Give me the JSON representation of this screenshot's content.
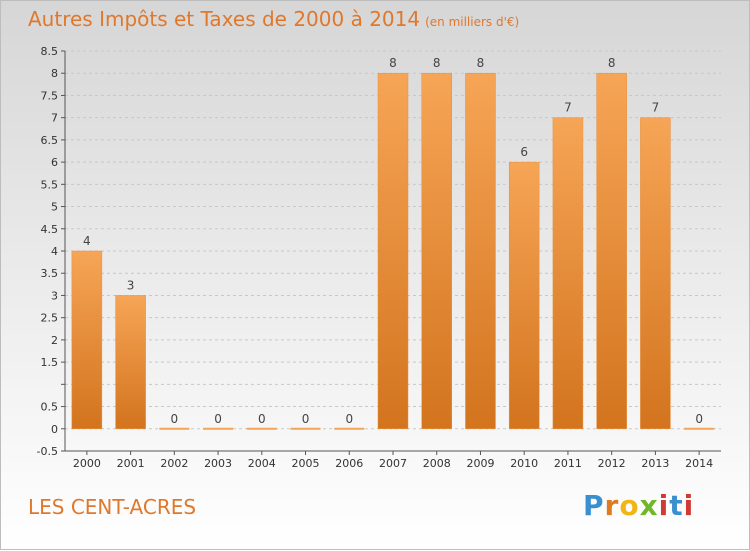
{
  "title": "Autres Impôts et Taxes de 2000 à 2014",
  "unit": "(en milliers d'€)",
  "commune": "LES CENT-ACRES",
  "logo": "Proxiti",
  "colors": {
    "bar_light": "#f6a556",
    "bar_dark": "#d3741e",
    "title": "#e0782c",
    "grid": "#c8c8c8"
  },
  "chart_data": {
    "type": "bar",
    "categories": [
      "2000",
      "2001",
      "2002",
      "2003",
      "2004",
      "2005",
      "2006",
      "2007",
      "2008",
      "2009",
      "2010",
      "2011",
      "2012",
      "2013",
      "2014"
    ],
    "values": [
      4,
      3,
      0,
      0,
      0,
      0,
      0,
      8,
      8,
      8,
      6,
      7,
      8,
      7,
      0
    ],
    "data_labels": [
      "4",
      "3",
      "0",
      "0",
      "0",
      "0",
      "0",
      "8",
      "8",
      "8",
      "6",
      "7",
      "8",
      "7",
      "0"
    ],
    "ylim": [
      -0.5,
      8.5
    ],
    "yticks": [
      -0.5,
      0,
      0.5,
      1,
      1.5,
      2,
      2.5,
      3,
      3.5,
      4,
      4.5,
      5,
      5.5,
      6,
      6.5,
      7,
      7.5,
      8,
      8.5
    ],
    "ytick_labels": [
      "-0.5",
      "0",
      "0.5",
      "",
      "1.5",
      "2",
      "2.5",
      "3",
      "3.5",
      "4",
      "4.5",
      "5",
      "5.5",
      "6",
      "6.5",
      "7",
      "7.5",
      "8",
      "8.5"
    ],
    "grid": "horizontal dashed",
    "legend": "none"
  }
}
